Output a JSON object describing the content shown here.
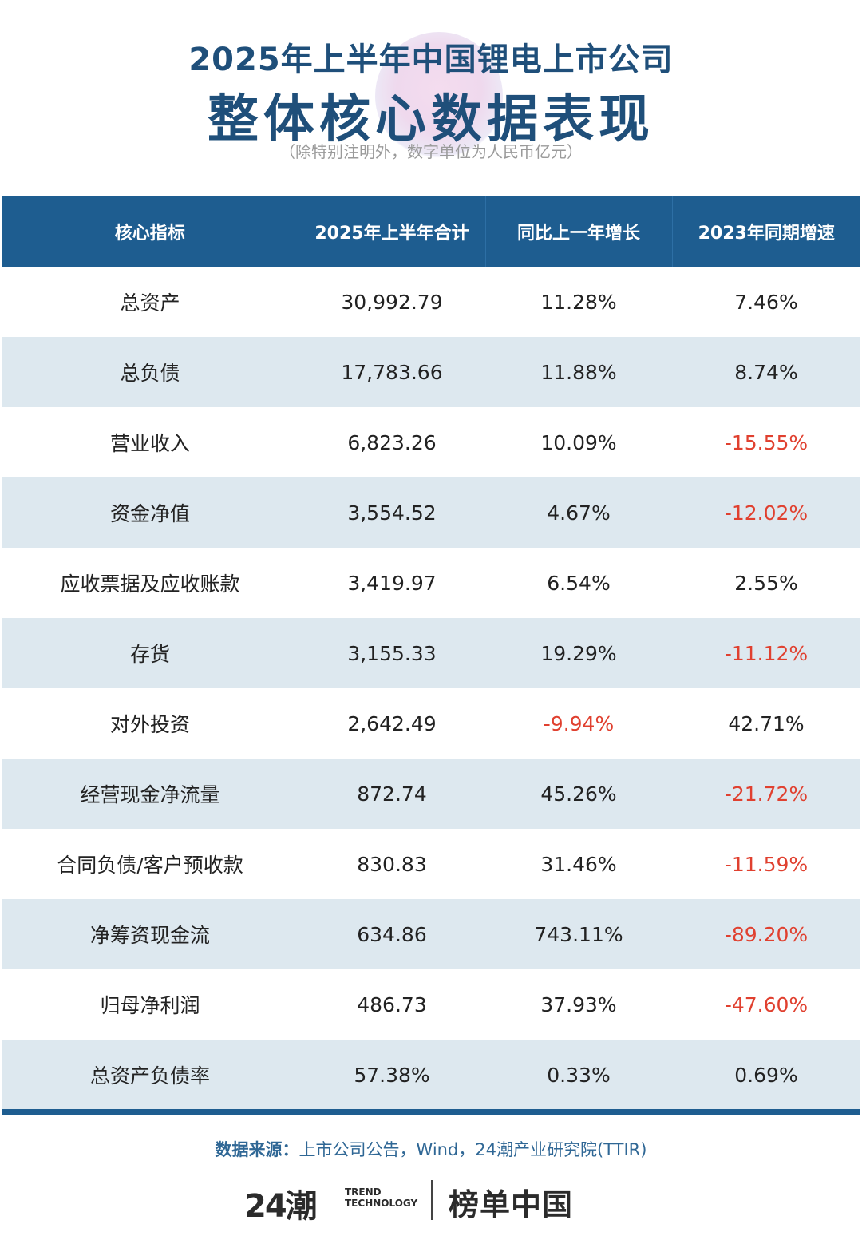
{
  "title_line1": "2025年上半年中国锂电上市公司",
  "title_line2": "整体核心数据表现",
  "subtitle": "（除特别注明外，数字单位为人民币亿元）",
  "table": {
    "headers": [
      "核心指标",
      "2025年上半年合计",
      "同比上一年增长",
      "2023年同期增速"
    ],
    "rows": [
      {
        "name": "总资产",
        "total": "30,992.79",
        "yoy": "11.28%",
        "prev": "7.46%"
      },
      {
        "name": "总负债",
        "total": "17,783.66",
        "yoy": "11.88%",
        "prev": "8.74%"
      },
      {
        "name": "营业收入",
        "total": "6,823.26",
        "yoy": "10.09%",
        "prev": "-15.55%"
      },
      {
        "name": "资金净值",
        "total": "3,554.52",
        "yoy": "4.67%",
        "prev": "-12.02%"
      },
      {
        "name": "应收票据及应收账款",
        "total": "3,419.97",
        "yoy": "6.54%",
        "prev": "2.55%"
      },
      {
        "name": "存货",
        "total": "3,155.33",
        "yoy": "19.29%",
        "prev": "-11.12%"
      },
      {
        "name": "对外投资",
        "total": "2,642.49",
        "yoy": "-9.94%",
        "prev": "42.71%"
      },
      {
        "name": "经营现金净流量",
        "total": "872.74",
        "yoy": "45.26%",
        "prev": "-21.72%"
      },
      {
        "name": "合同负债/客户预收款",
        "total": "830.83",
        "yoy": "31.46%",
        "prev": "-11.59%"
      },
      {
        "name": "净筹资现金流",
        "total": "634.86",
        "yoy": "743.11%",
        "prev": "-89.20%"
      },
      {
        "name": "归母净利润",
        "total": "486.73",
        "yoy": "37.93%",
        "prev": "-47.60%"
      },
      {
        "name": "总资产负债率",
        "total": "57.38%",
        "yoy": "0.33%",
        "prev": "0.69%"
      }
    ]
  },
  "source": {
    "label": "数据来源：",
    "text": "上市公司公告，Wind，24潮产业研究院(TTIR)"
  },
  "footer": {
    "logo_number": "24潮",
    "logo_trend": "TREND",
    "logo_technology": "TECHNOLOGY",
    "brand": "榜单中国"
  },
  "colors": {
    "title": "#1f4f7a",
    "header_bg": "#1e5d90",
    "stripe": "#dde8ef",
    "negative": "#e0402f",
    "source": "#2f6795"
  }
}
